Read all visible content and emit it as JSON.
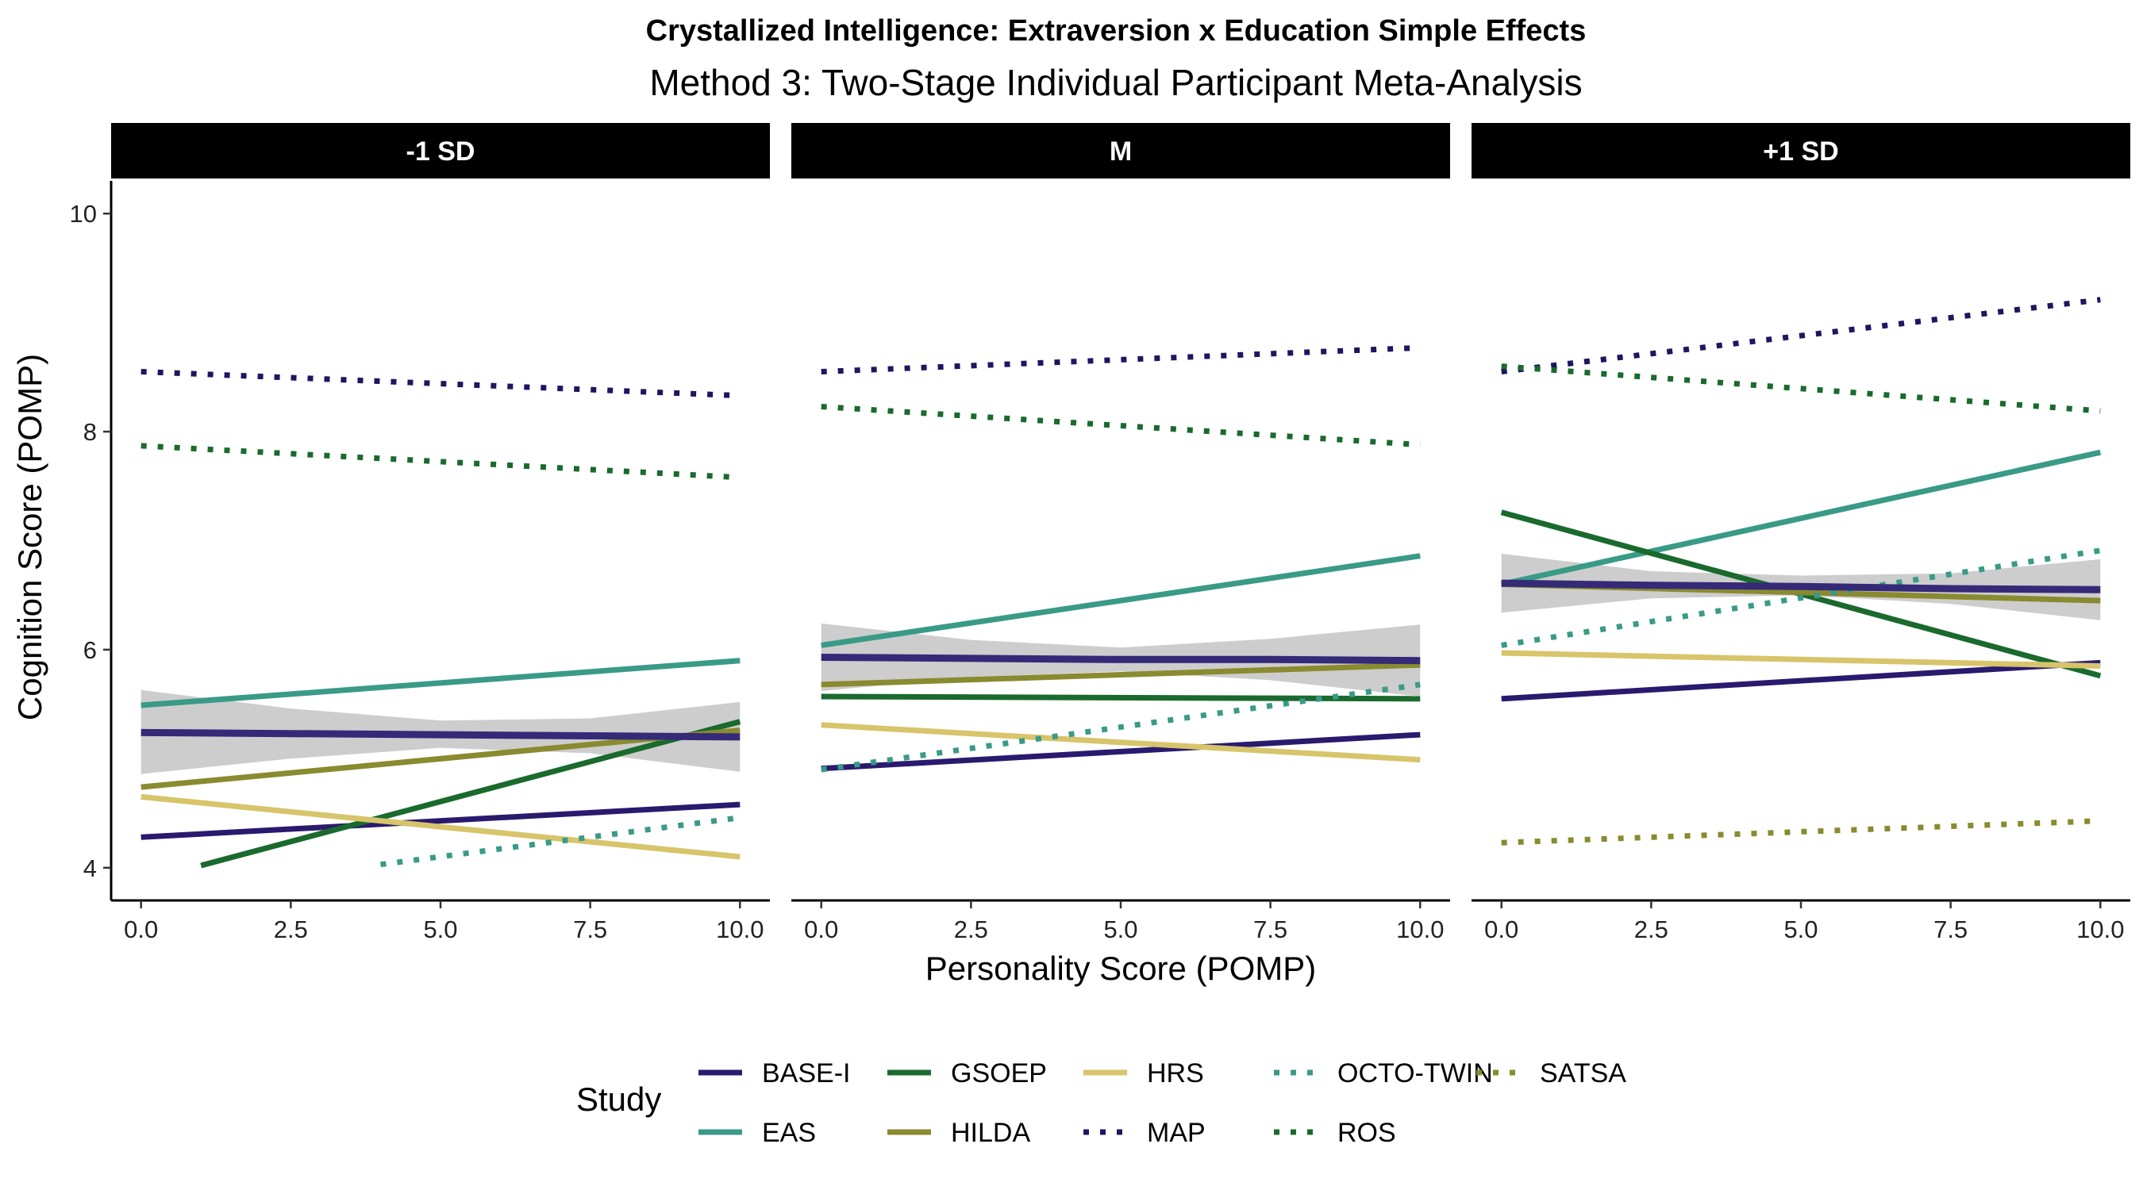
{
  "chart_data": {
    "type": "line",
    "title": "Crystallized Intelligence: Extraversion x Education Simple Effects",
    "subtitle": "Method 3: Two-Stage Individual Participant Meta-Analysis",
    "xlabel": "Personality Score (POMP)",
    "ylabel": "Cognition Score (POMP)",
    "xlim": [
      -0.5,
      10.5
    ],
    "ylim": [
      3.7,
      10.3
    ],
    "xticks": [
      "0.0",
      "2.5",
      "5.0",
      "7.5",
      "10.0"
    ],
    "xtick_values": [
      0,
      2.5,
      5,
      7.5,
      10
    ],
    "yticks": [
      "4",
      "6",
      "8",
      "10"
    ],
    "ytick_values": [
      4,
      6,
      8,
      10
    ],
    "grid": false,
    "legend_title": "Study",
    "legend_position": "bottom",
    "studies": [
      {
        "name": "BASE-I",
        "color": "#2a1a6e",
        "style": "solid"
      },
      {
        "name": "EAS",
        "color": "#3a9a88",
        "style": "solid"
      },
      {
        "name": "GSOEP",
        "color": "#1a6a2e",
        "style": "solid"
      },
      {
        "name": "HILDA",
        "color": "#8a8a30",
        "style": "solid"
      },
      {
        "name": "HRS",
        "color": "#d8c46a",
        "style": "solid"
      },
      {
        "name": "MAP",
        "color": "#1e1660",
        "style": "dotted"
      },
      {
        "name": "OCTO-TWIN",
        "color": "#3a9a88",
        "style": "dotted"
      },
      {
        "name": "ROS",
        "color": "#1a6a2e",
        "style": "dotted"
      },
      {
        "name": "SATSA",
        "color": "#8a8a30",
        "style": "dotted"
      }
    ],
    "pooled": {
      "color": "#352a78",
      "band_color": "#c8c8c8"
    },
    "panels": [
      {
        "label": "-1 SD",
        "pooled": {
          "x": [
            0,
            2.5,
            5,
            7.5,
            10
          ],
          "y": [
            5.24,
            5.23,
            5.22,
            5.21,
            5.2
          ],
          "lower": [
            4.86,
            5.0,
            5.1,
            5.05,
            4.88
          ],
          "upper": [
            5.63,
            5.46,
            5.35,
            5.37,
            5.52
          ]
        },
        "series": [
          {
            "name": "BASE-I",
            "x": [
              0,
              10
            ],
            "y": [
              4.28,
              4.58
            ]
          },
          {
            "name": "EAS",
            "x": [
              0,
              10
            ],
            "y": [
              5.49,
              5.9
            ]
          },
          {
            "name": "GSOEP",
            "x": [
              1,
              10
            ],
            "y": [
              4.02,
              5.34
            ]
          },
          {
            "name": "HILDA",
            "x": [
              0,
              10
            ],
            "y": [
              4.74,
              5.26
            ]
          },
          {
            "name": "HRS",
            "x": [
              0,
              10
            ],
            "y": [
              4.65,
              4.1
            ]
          },
          {
            "name": "MAP",
            "x": [
              0,
              10
            ],
            "y": [
              8.55,
              8.33
            ]
          },
          {
            "name": "OCTO-TWIN",
            "x": [
              4,
              10
            ],
            "y": [
              4.03,
              4.46
            ]
          },
          {
            "name": "ROS",
            "x": [
              0,
              10
            ],
            "y": [
              7.87,
              7.58
            ]
          }
        ]
      },
      {
        "label": "M",
        "pooled": {
          "x": [
            0,
            2.5,
            5,
            7.5,
            10
          ],
          "y": [
            5.93,
            5.92,
            5.91,
            5.91,
            5.9
          ],
          "lower": [
            5.62,
            5.75,
            5.8,
            5.72,
            5.57
          ],
          "upper": [
            6.24,
            6.09,
            6.02,
            6.1,
            6.23
          ]
        },
        "series": [
          {
            "name": "BASE-I",
            "x": [
              0,
              10
            ],
            "y": [
              4.91,
              5.22
            ]
          },
          {
            "name": "EAS",
            "x": [
              0,
              10
            ],
            "y": [
              6.04,
              6.86
            ]
          },
          {
            "name": "GSOEP",
            "x": [
              0,
              10
            ],
            "y": [
              5.57,
              5.55
            ]
          },
          {
            "name": "HILDA",
            "x": [
              0,
              10
            ],
            "y": [
              5.68,
              5.86
            ]
          },
          {
            "name": "HRS",
            "x": [
              0,
              10
            ],
            "y": [
              5.31,
              4.99
            ]
          },
          {
            "name": "MAP",
            "x": [
              0,
              10
            ],
            "y": [
              8.55,
              8.77
            ]
          },
          {
            "name": "OCTO-TWIN",
            "x": [
              0,
              10
            ],
            "y": [
              4.9,
              5.68
            ]
          },
          {
            "name": "ROS",
            "x": [
              0,
              10
            ],
            "y": [
              8.23,
              7.88
            ]
          }
        ]
      },
      {
        "label": "+1 SD",
        "pooled": {
          "x": [
            0,
            2.5,
            5,
            7.5,
            10
          ],
          "y": [
            6.61,
            6.59,
            6.58,
            6.56,
            6.55
          ],
          "lower": [
            6.34,
            6.47,
            6.5,
            6.42,
            6.27
          ],
          "upper": [
            6.88,
            6.72,
            6.68,
            6.7,
            6.83
          ]
        },
        "series": [
          {
            "name": "BASE-I",
            "x": [
              0,
              10
            ],
            "y": [
              5.55,
              5.88
            ]
          },
          {
            "name": "EAS",
            "x": [
              0,
              10
            ],
            "y": [
              6.6,
              7.81
            ]
          },
          {
            "name": "GSOEP",
            "x": [
              0,
              10
            ],
            "y": [
              7.26,
              5.76
            ]
          },
          {
            "name": "HILDA",
            "x": [
              0,
              10
            ],
            "y": [
              6.6,
              6.45
            ]
          },
          {
            "name": "HRS",
            "x": [
              0,
              10
            ],
            "y": [
              5.97,
              5.85
            ]
          },
          {
            "name": "MAP",
            "x": [
              0,
              10
            ],
            "y": [
              8.55,
              9.21
            ]
          },
          {
            "name": "OCTO-TWIN",
            "x": [
              0,
              10
            ],
            "y": [
              6.04,
              6.91
            ]
          },
          {
            "name": "ROS",
            "x": [
              0,
              10
            ],
            "y": [
              8.6,
              8.19
            ]
          },
          {
            "name": "SATSA",
            "x": [
              0,
              10
            ],
            "y": [
              4.23,
              4.43
            ]
          }
        ]
      }
    ]
  }
}
